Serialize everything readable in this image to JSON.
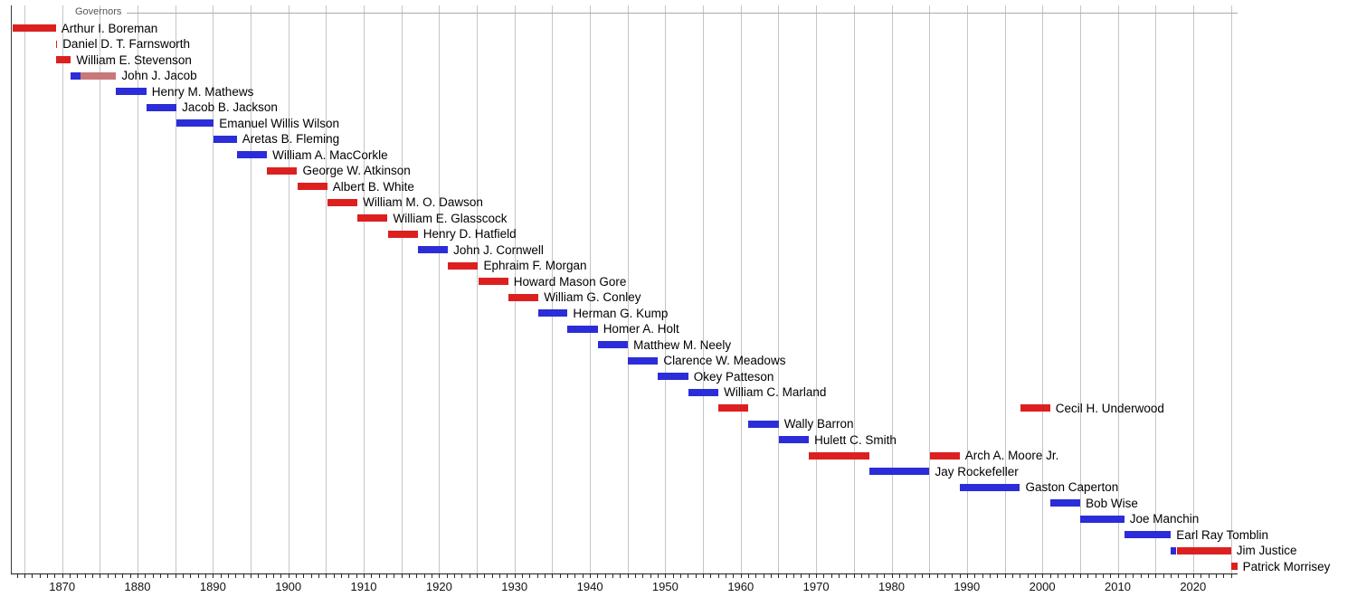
{
  "title": "Governors",
  "chart_data": {
    "type": "timeline",
    "title": "Governors",
    "x_axis": {
      "start": 1863.2,
      "end": 2025.9,
      "decade_labels": [
        "1870",
        "1880",
        "1890",
        "1900",
        "1910",
        "1920",
        "1930",
        "1940",
        "1950",
        "1960",
        "1970",
        "1980",
        "1990",
        "2000",
        "2010",
        "2020"
      ],
      "decade_years": [
        1870,
        1880,
        1890,
        1900,
        1910,
        1920,
        1930,
        1940,
        1950,
        1960,
        1970,
        1980,
        1990,
        2000,
        2010,
        2020
      ],
      "gridline_years": [
        1865,
        1870,
        1875,
        1880,
        1885,
        1890,
        1895,
        1900,
        1905,
        1910,
        1915,
        1920,
        1925,
        1930,
        1935,
        1940,
        1945,
        1950,
        1955,
        1960,
        1965,
        1970,
        1975,
        1980,
        1985,
        1990,
        1995,
        2000,
        2005,
        2010,
        2015,
        2020,
        2025
      ],
      "minor_tick_start": 1864,
      "minor_tick_end": 2025,
      "minor_tick_step": 1,
      "grid": true
    },
    "party_colors": {
      "Republican": "#dc2020",
      "Democratic": "#2c2cd8",
      "Independent": "#c87878"
    },
    "governors": [
      {
        "name": "Arthur I. Boreman",
        "terms": [
          {
            "start": 1863.47,
            "end": 1869.16,
            "party": "Republican"
          }
        ]
      },
      {
        "name": "Daniel D. T. Farnsworth",
        "terms": [
          {
            "start": 1869.16,
            "end": 1869.18,
            "party": "Republican"
          }
        ]
      },
      {
        "name": "William E. Stevenson",
        "terms": [
          {
            "start": 1869.18,
            "end": 1871.17,
            "party": "Republican"
          }
        ]
      },
      {
        "name": "John J. Jacob",
        "terms": [
          {
            "start": 1871.17,
            "end": 1872.4,
            "party": "Democratic"
          },
          {
            "start": 1872.4,
            "end": 1877.17,
            "party": "Independent"
          }
        ]
      },
      {
        "name": "Henry M. Mathews",
        "terms": [
          {
            "start": 1877.17,
            "end": 1881.17,
            "party": "Democratic"
          }
        ]
      },
      {
        "name": "Jacob B. Jackson",
        "terms": [
          {
            "start": 1881.17,
            "end": 1885.17,
            "party": "Democratic"
          }
        ]
      },
      {
        "name": "Emanuel Willis Wilson",
        "terms": [
          {
            "start": 1885.17,
            "end": 1890.1,
            "party": "Democratic"
          }
        ]
      },
      {
        "name": "Aretas B. Fleming",
        "terms": [
          {
            "start": 1890.1,
            "end": 1893.17,
            "party": "Democratic"
          }
        ]
      },
      {
        "name": "William A. MacCorkle",
        "terms": [
          {
            "start": 1893.17,
            "end": 1897.17,
            "party": "Democratic"
          }
        ]
      },
      {
        "name": "George W. Atkinson",
        "terms": [
          {
            "start": 1897.17,
            "end": 1901.17,
            "party": "Republican"
          }
        ]
      },
      {
        "name": "Albert B. White",
        "terms": [
          {
            "start": 1901.17,
            "end": 1905.17,
            "party": "Republican"
          }
        ]
      },
      {
        "name": "William M. O. Dawson",
        "terms": [
          {
            "start": 1905.17,
            "end": 1909.17,
            "party": "Republican"
          }
        ]
      },
      {
        "name": "William E. Glasscock",
        "terms": [
          {
            "start": 1909.17,
            "end": 1913.17,
            "party": "Republican"
          }
        ]
      },
      {
        "name": "Henry D. Hatfield",
        "terms": [
          {
            "start": 1913.17,
            "end": 1917.17,
            "party": "Republican"
          }
        ]
      },
      {
        "name": "John J. Cornwell",
        "terms": [
          {
            "start": 1917.17,
            "end": 1921.17,
            "party": "Democratic"
          }
        ]
      },
      {
        "name": "Ephraim F. Morgan",
        "terms": [
          {
            "start": 1921.17,
            "end": 1925.17,
            "party": "Republican"
          }
        ]
      },
      {
        "name": "Howard Mason Gore",
        "terms": [
          {
            "start": 1925.17,
            "end": 1929.17,
            "party": "Republican"
          }
        ]
      },
      {
        "name": "William G. Conley",
        "terms": [
          {
            "start": 1929.17,
            "end": 1933.17,
            "party": "Republican"
          }
        ]
      },
      {
        "name": "Herman G. Kump",
        "terms": [
          {
            "start": 1933.17,
            "end": 1937.04,
            "party": "Democratic"
          }
        ]
      },
      {
        "name": "Homer A. Holt",
        "terms": [
          {
            "start": 1937.04,
            "end": 1941.04,
            "party": "Democratic"
          }
        ]
      },
      {
        "name": "Matthew M. Neely",
        "terms": [
          {
            "start": 1941.04,
            "end": 1945.04,
            "party": "Democratic"
          }
        ]
      },
      {
        "name": "Clarence W. Meadows",
        "terms": [
          {
            "start": 1945.04,
            "end": 1949.04,
            "party": "Democratic"
          }
        ]
      },
      {
        "name": "Okey Patteson",
        "terms": [
          {
            "start": 1949.04,
            "end": 1953.04,
            "party": "Democratic"
          }
        ]
      },
      {
        "name": "William C. Marland",
        "terms": [
          {
            "start": 1953.04,
            "end": 1957.04,
            "party": "Democratic"
          }
        ]
      },
      {
        "name": "Cecil H. Underwood",
        "terms": [
          {
            "start": 1957.04,
            "end": 1961.04,
            "party": "Republican"
          },
          {
            "start": 1997.04,
            "end": 2001.04,
            "party": "Republican"
          }
        ]
      },
      {
        "name": "Wally Barron",
        "terms": [
          {
            "start": 1961.04,
            "end": 1965.04,
            "party": "Democratic"
          }
        ]
      },
      {
        "name": "Hulett C. Smith",
        "terms": [
          {
            "start": 1965.04,
            "end": 1969.04,
            "party": "Democratic"
          }
        ]
      },
      {
        "name": "Arch A. Moore Jr.",
        "terms": [
          {
            "start": 1969.04,
            "end": 1977.04,
            "party": "Republican"
          },
          {
            "start": 1985.04,
            "end": 1989.04,
            "party": "Republican"
          }
        ]
      },
      {
        "name": "Jay Rockefeller",
        "terms": [
          {
            "start": 1977.04,
            "end": 1985.04,
            "party": "Democratic"
          }
        ]
      },
      {
        "name": "Gaston Caperton",
        "terms": [
          {
            "start": 1989.04,
            "end": 1997.04,
            "party": "Democratic"
          }
        ]
      },
      {
        "name": "Bob Wise",
        "terms": [
          {
            "start": 2001.04,
            "end": 2005.04,
            "party": "Democratic"
          }
        ]
      },
      {
        "name": "Joe Manchin",
        "terms": [
          {
            "start": 2005.04,
            "end": 2010.87,
            "party": "Democratic"
          }
        ]
      },
      {
        "name": "Earl Ray Tomblin",
        "terms": [
          {
            "start": 2010.87,
            "end": 2017.04,
            "party": "Democratic"
          }
        ]
      },
      {
        "name": "Jim Justice",
        "terms": [
          {
            "start": 2017.04,
            "end": 2017.8,
            "party": "Democratic"
          },
          {
            "start": 2017.8,
            "end": 2025.04,
            "party": "Republican"
          }
        ]
      },
      {
        "name": "Patrick Morrisey",
        "terms": [
          {
            "start": 2025.04,
            "end": 2025.85,
            "party": "Republican"
          }
        ]
      }
    ]
  }
}
